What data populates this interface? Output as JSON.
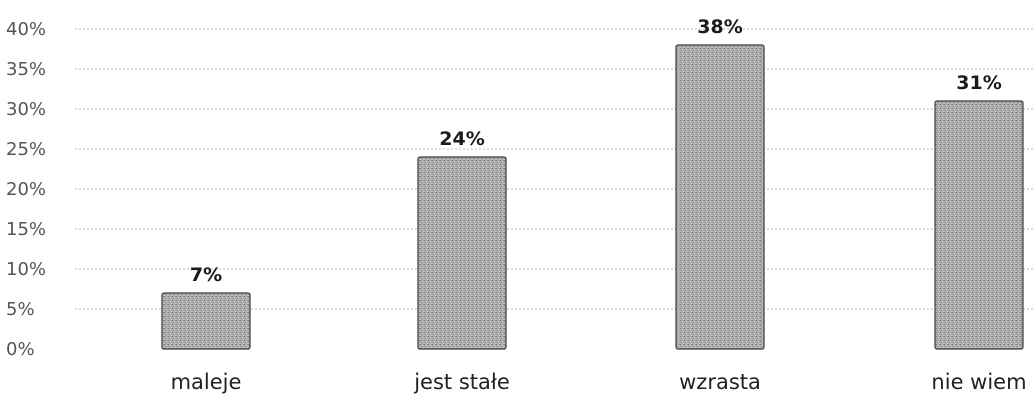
{
  "chart_data": {
    "type": "bar",
    "categories": [
      "maleje",
      "jest stałe",
      "wzrasta",
      "nie wiem"
    ],
    "values": [
      7,
      24,
      38,
      31
    ],
    "value_labels": [
      "7%",
      "24%",
      "38%",
      "31%"
    ],
    "y_ticks": [
      "0%",
      "5%",
      "10%",
      "15%",
      "20%",
      "25%",
      "30%",
      "35%",
      "40%"
    ],
    "ylim": [
      0,
      40
    ],
    "grid": true,
    "legend": "none",
    "colors": {
      "bar_fill": "#a9a9a9",
      "bar_stroke": "#3a3a3a",
      "grid": "#b8b8b8"
    }
  }
}
